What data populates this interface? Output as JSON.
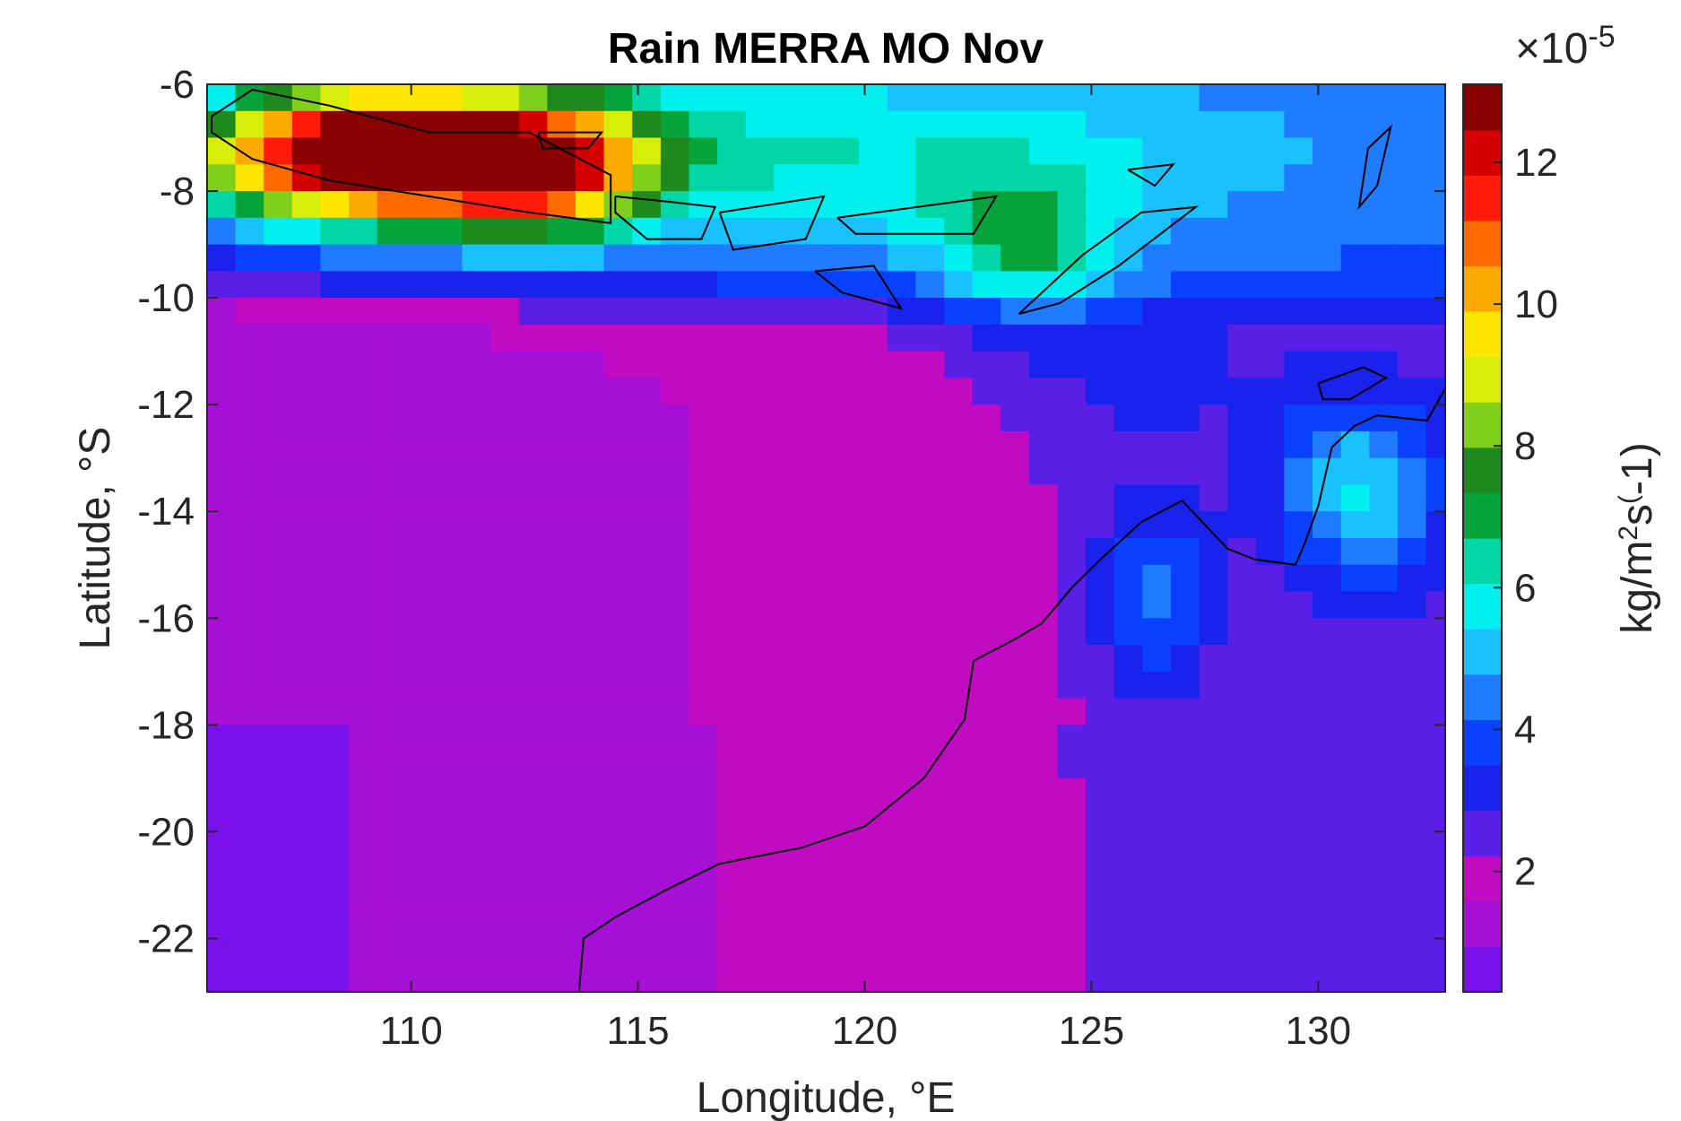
{
  "chart_data": {
    "type": "heatmap",
    "title": "Rain MERRA MO Nov",
    "xlabel": "Longitude, °E",
    "ylabel": "Latitude, °S",
    "xlim": [
      105.5,
      132.8
    ],
    "ylim": [
      -23,
      -6
    ],
    "xticks": [
      110,
      115,
      120,
      125,
      130
    ],
    "xtick_labels": [
      "110",
      "115",
      "120",
      "125",
      "130"
    ],
    "yticks": [
      -6,
      -8,
      -10,
      -12,
      -14,
      -16,
      -18,
      -20,
      -22
    ],
    "ytick_labels": [
      "-6",
      "-8",
      "-10",
      "-12",
      "-14",
      "-16",
      "-18",
      "-20",
      "-22"
    ],
    "colorbar": {
      "label_parts": [
        "kg/m",
        "2",
        "s",
        "(",
        "-1)"
      ],
      "exponent_prefix": "×10",
      "exponent": "-5",
      "clim": [
        0.3,
        13.1
      ],
      "ticks": [
        2,
        4,
        6,
        8,
        10,
        12
      ],
      "tick_labels": [
        "2",
        "4",
        "6",
        "8",
        "10",
        "12"
      ],
      "colormap": [
        "#7a10ea",
        "#a60fd6",
        "#c10bc3",
        "#5a1fe6",
        "#1a22ee",
        "#0a40ff",
        "#1f7bff",
        "#19c2ff",
        "#00f0f0",
        "#00d6a6",
        "#06a23a",
        "#1e8a1e",
        "#7ed01a",
        "#d6ee0a",
        "#ffe600",
        "#ffaa00",
        "#ff6a00",
        "#ff1a0a",
        "#d40000",
        "#8b0000"
      ]
    },
    "grid": false,
    "units_scale": "1e-5 kg m^-2 s^-1"
  }
}
